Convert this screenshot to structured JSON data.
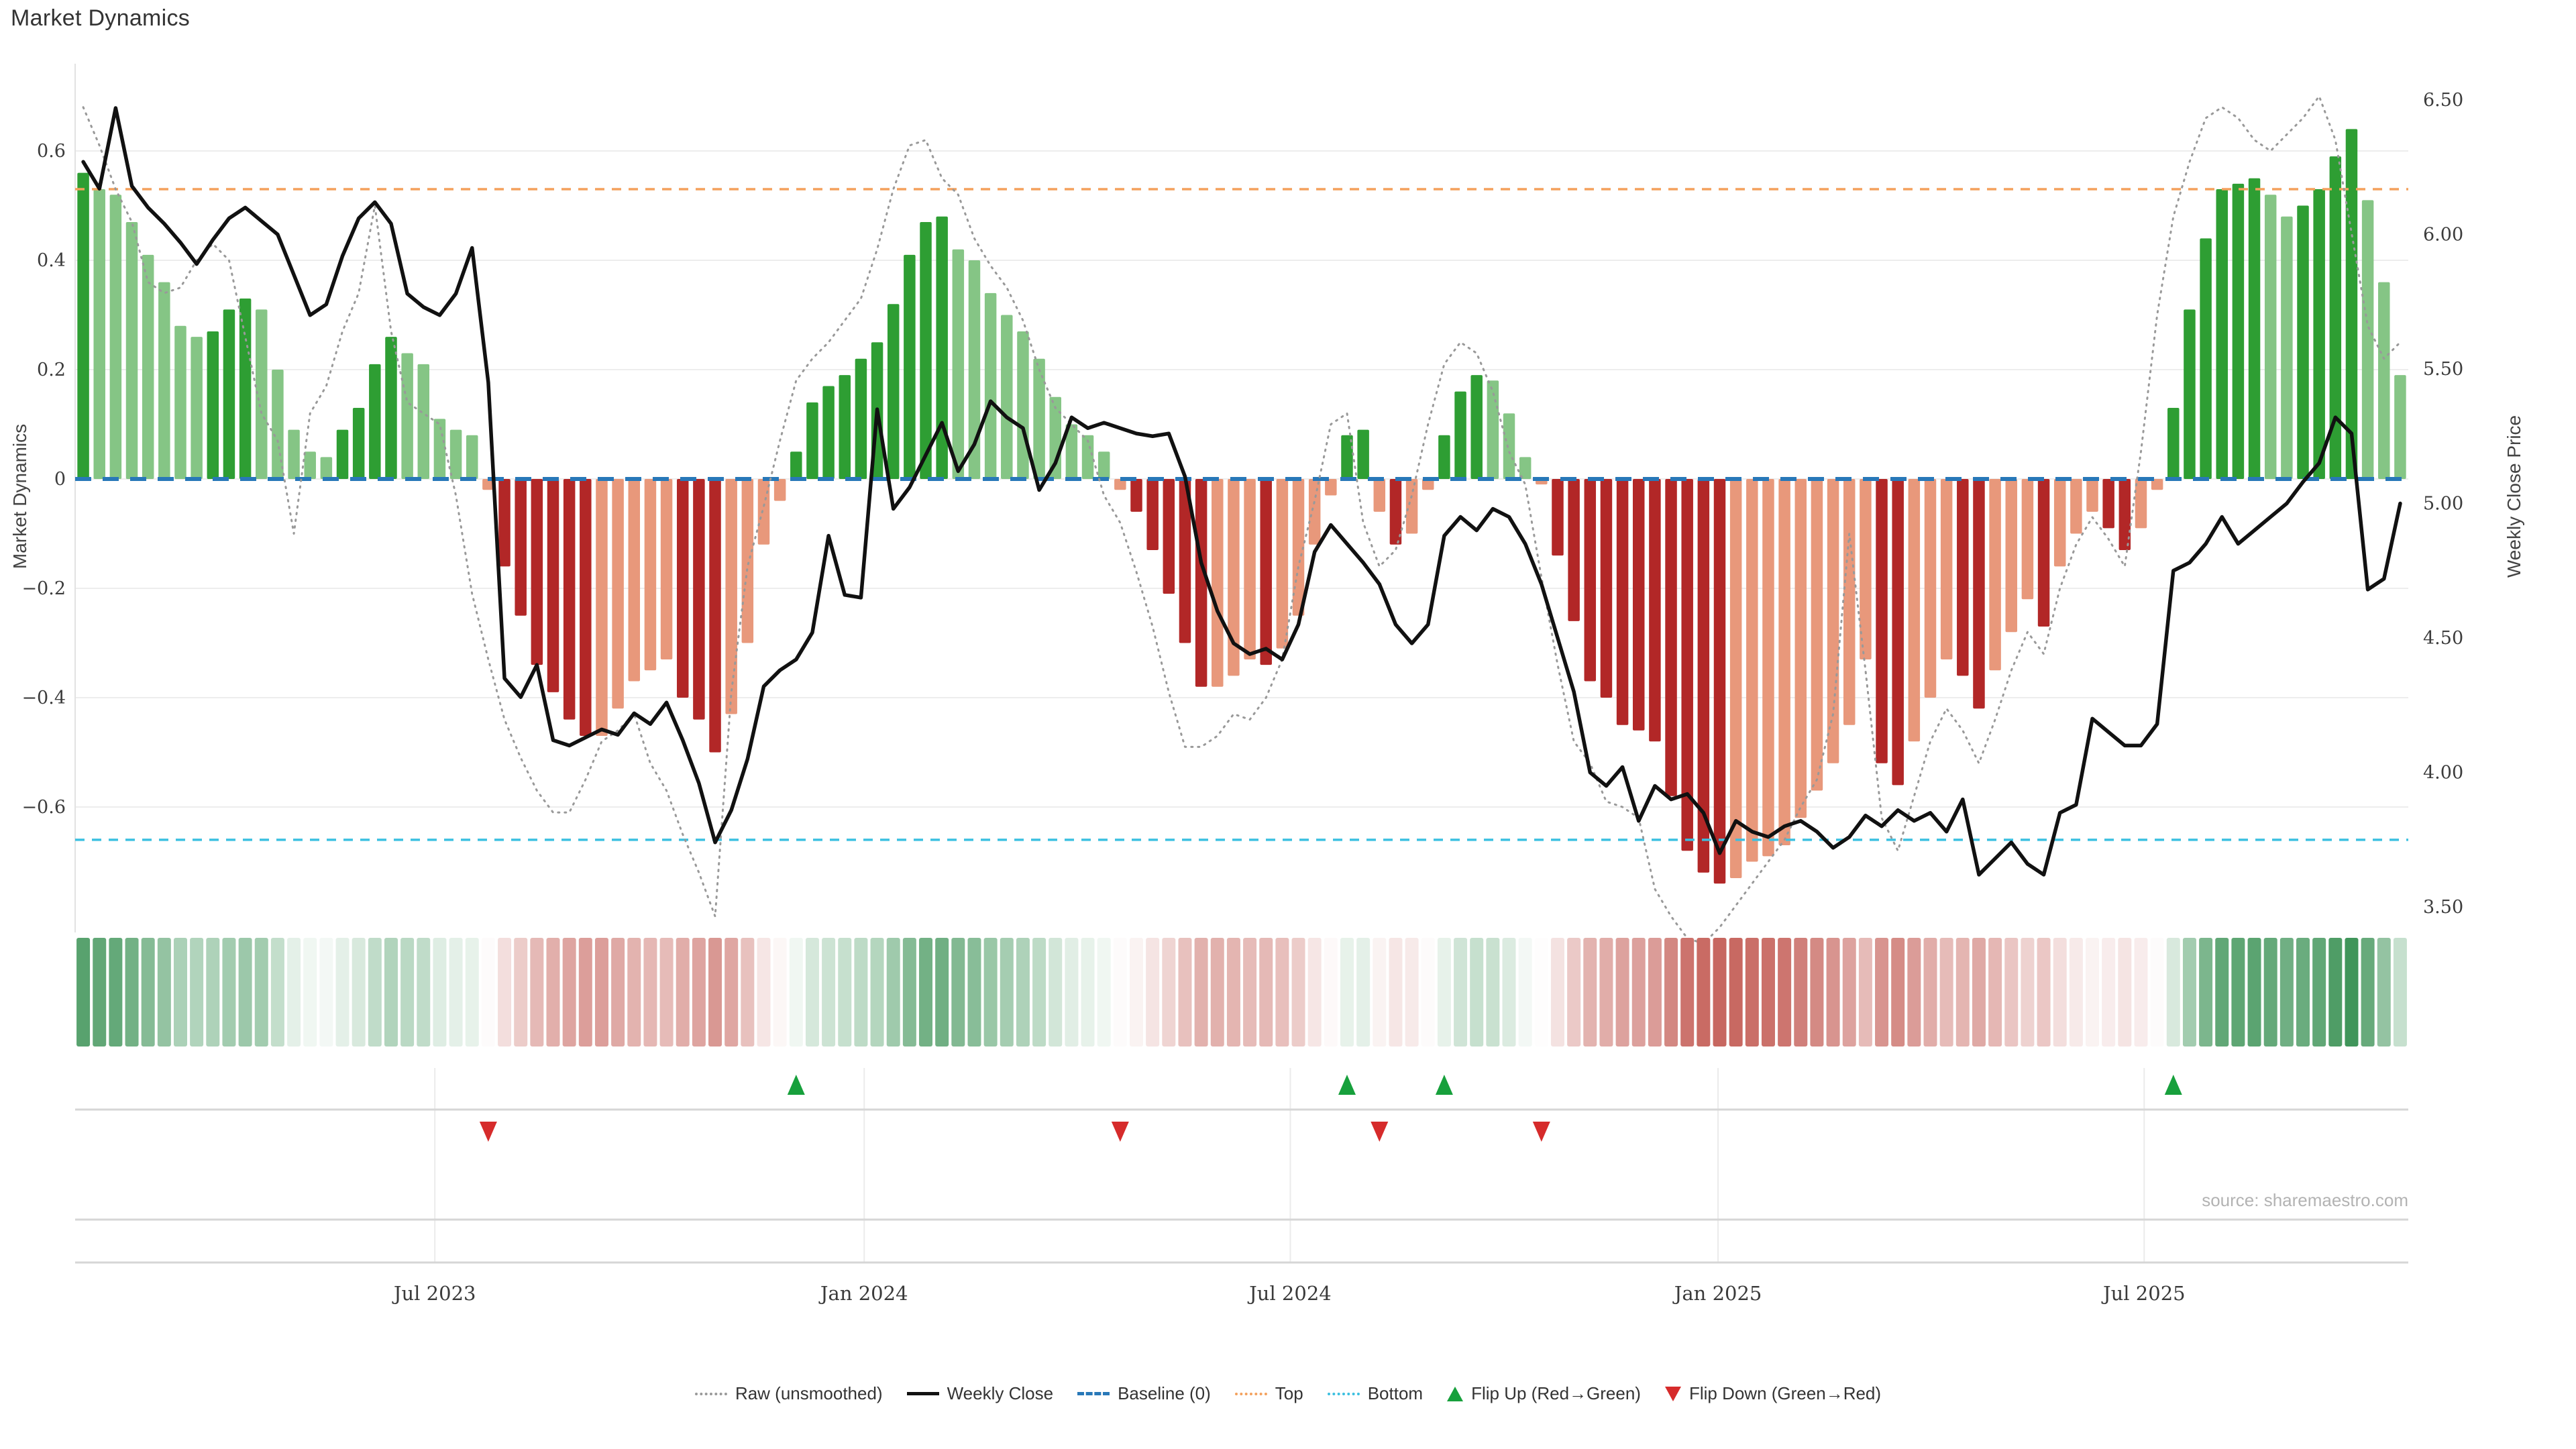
{
  "window": {
    "title": "Market Dynamics"
  },
  "source_note": "source: sharemaestro.com",
  "axes": {
    "left": {
      "title": "Market Dynamics",
      "tick_values": [
        0.6,
        0.4,
        0.2,
        0,
        -0.2,
        -0.4,
        -0.6
      ],
      "tick_labels": [
        "0.6",
        "0.4",
        "0.2",
        "0",
        "−0.2",
        "−0.4",
        "−0.6"
      ]
    },
    "right": {
      "title": "Weekly Close Price",
      "tick_values": [
        6.5,
        6.0,
        5.5,
        5.0,
        4.5,
        4.0,
        3.5
      ],
      "tick_labels": [
        "6.50",
        "6.00",
        "5.50",
        "5.00",
        "4.50",
        "4.00",
        "3.50"
      ]
    },
    "x": {
      "labels": [
        "Jul 2023",
        "Jan 2024",
        "Jul 2024",
        "Jan 2025",
        "Jul 2025"
      ],
      "week_positions": [
        22.2,
        48.7,
        75.0,
        101.4,
        127.7
      ]
    }
  },
  "legend": [
    {
      "label": "Raw (unsmoothed)",
      "swatch": "dotted-gray"
    },
    {
      "label": "Weekly Close",
      "swatch": "solid-black"
    },
    {
      "label": "Baseline (0)",
      "swatch": "dashed-blue"
    },
    {
      "label": "Top",
      "swatch": "dotted-orange"
    },
    {
      "label": "Bottom",
      "swatch": "dotted-cyan"
    },
    {
      "label": "Flip Up (Red→Green)",
      "swatch": "triangle-up"
    },
    {
      "label": "Flip Down (Green→Red)",
      "swatch": "triangle-down"
    }
  ],
  "markers": {
    "flip_up_weeks": [
      44,
      78,
      84,
      129
    ],
    "flip_down_weeks": [
      25,
      64,
      80,
      90
    ]
  },
  "chart_data": {
    "type": "bar",
    "subtype": "oscillator-with-price-overlay",
    "title": "Market Dynamics",
    "xlabel": "",
    "ylabel_left": "Market Dynamics",
    "ylabel_right": "Weekly Close Price",
    "ylim_left": [
      -0.78,
      0.78
    ],
    "ylim_right": [
      3.35,
      6.6
    ],
    "grid": "horizontal-light",
    "legend_position": "bottom-center",
    "baseline": 0,
    "top_threshold": 0.53,
    "bottom_threshold": -0.66,
    "weeks": 144,
    "x_start_label": "Feb 2023",
    "x_end_label": "Nov 2025",
    "series": [
      {
        "name": "Market Dynamics (smoothed bars)",
        "type": "bar",
        "values": [
          0.56,
          0.53,
          0.52,
          0.47,
          0.41,
          0.36,
          0.28,
          0.26,
          0.27,
          0.31,
          0.33,
          0.31,
          0.2,
          0.09,
          0.05,
          0.04,
          0.09,
          0.13,
          0.21,
          0.26,
          0.23,
          0.21,
          0.11,
          0.09,
          0.08,
          -0.02,
          -0.16,
          -0.25,
          -0.34,
          -0.39,
          -0.44,
          -0.47,
          -0.47,
          -0.42,
          -0.37,
          -0.35,
          -0.33,
          -0.4,
          -0.44,
          -0.5,
          -0.43,
          -0.3,
          -0.12,
          -0.04,
          0.05,
          0.14,
          0.17,
          0.19,
          0.22,
          0.25,
          0.32,
          0.41,
          0.47,
          0.48,
          0.42,
          0.4,
          0.34,
          0.3,
          0.27,
          0.22,
          0.15,
          0.1,
          0.08,
          0.05,
          -0.02,
          -0.06,
          -0.13,
          -0.21,
          -0.3,
          -0.38,
          -0.38,
          -0.36,
          -0.33,
          -0.34,
          -0.31,
          -0.25,
          -0.12,
          -0.03,
          0.08,
          0.09,
          -0.06,
          -0.12,
          -0.1,
          -0.02,
          0.08,
          0.16,
          0.19,
          0.18,
          0.12,
          0.04,
          -0.01,
          -0.14,
          -0.26,
          -0.37,
          -0.4,
          -0.45,
          -0.46,
          -0.48,
          -0.58,
          -0.68,
          -0.72,
          -0.74,
          -0.73,
          -0.7,
          -0.69,
          -0.67,
          -0.62,
          -0.57,
          -0.52,
          -0.45,
          -0.33,
          -0.52,
          -0.56,
          -0.48,
          -0.4,
          -0.33,
          -0.36,
          -0.42,
          -0.35,
          -0.28,
          -0.22,
          -0.27,
          -0.16,
          -0.1,
          -0.06,
          -0.09,
          -0.13,
          -0.09,
          -0.02,
          0.13,
          0.31,
          0.44,
          0.53,
          0.54,
          0.55,
          0.52,
          0.48,
          0.5,
          0.53,
          0.59,
          0.64,
          0.51,
          0.36,
          0.19
        ]
      },
      {
        "name": "Raw (unsmoothed)",
        "type": "line-dotted",
        "values": [
          0.68,
          0.61,
          0.53,
          0.47,
          0.36,
          0.34,
          0.35,
          0.4,
          0.43,
          0.4,
          0.26,
          0.12,
          0.07,
          -0.1,
          0.12,
          0.17,
          0.27,
          0.34,
          0.5,
          0.27,
          0.14,
          0.12,
          0.1,
          -0.03,
          -0.21,
          -0.33,
          -0.44,
          -0.51,
          -0.57,
          -0.61,
          -0.61,
          -0.55,
          -0.48,
          -0.46,
          -0.43,
          -0.52,
          -0.57,
          -0.65,
          -0.72,
          -0.8,
          -0.39,
          -0.16,
          -0.05,
          0.07,
          0.18,
          0.22,
          0.25,
          0.29,
          0.33,
          0.42,
          0.53,
          0.61,
          0.62,
          0.55,
          0.52,
          0.44,
          0.39,
          0.35,
          0.29,
          0.2,
          0.13,
          0.1,
          0.07,
          -0.03,
          -0.08,
          -0.17,
          -0.27,
          -0.39,
          -0.49,
          -0.49,
          -0.47,
          -0.43,
          -0.44,
          -0.4,
          -0.33,
          -0.16,
          -0.04,
          0.1,
          0.12,
          -0.08,
          -0.16,
          -0.13,
          -0.03,
          0.1,
          0.21,
          0.25,
          0.23,
          0.16,
          0.05,
          -0.01,
          -0.18,
          -0.34,
          -0.48,
          -0.52,
          -0.59,
          -0.6,
          -0.62,
          -0.75,
          -0.8,
          -0.84,
          -0.85,
          -0.82,
          -0.78,
          -0.74,
          -0.7,
          -0.66,
          -0.6,
          -0.55,
          -0.43,
          -0.1,
          -0.35,
          -0.62,
          -0.68,
          -0.58,
          -0.48,
          -0.42,
          -0.46,
          -0.52,
          -0.44,
          -0.35,
          -0.28,
          -0.32,
          -0.2,
          -0.12,
          -0.07,
          -0.11,
          -0.16,
          0.05,
          0.3,
          0.48,
          0.58,
          0.66,
          0.68,
          0.66,
          0.62,
          0.6,
          0.63,
          0.66,
          0.7,
          0.62,
          0.45,
          0.28,
          0.22,
          0.25
        ]
      },
      {
        "name": "Weekly Close",
        "type": "line-solid",
        "axis": "right",
        "values": [
          6.27,
          6.17,
          6.47,
          6.18,
          6.1,
          6.04,
          5.97,
          5.89,
          5.98,
          6.06,
          6.1,
          6.05,
          6.0,
          5.85,
          5.7,
          5.74,
          5.92,
          6.06,
          6.12,
          6.04,
          5.78,
          5.73,
          5.7,
          5.78,
          5.95,
          5.45,
          4.35,
          4.28,
          4.4,
          4.12,
          4.1,
          4.13,
          4.16,
          4.14,
          4.22,
          4.18,
          4.26,
          4.12,
          3.96,
          3.74,
          3.86,
          4.05,
          4.32,
          4.38,
          4.42,
          4.52,
          4.88,
          4.66,
          4.65,
          5.35,
          4.98,
          5.06,
          5.18,
          5.3,
          5.12,
          5.22,
          5.38,
          5.32,
          5.28,
          5.05,
          5.15,
          5.32,
          5.28,
          5.3,
          5.28,
          5.26,
          5.25,
          5.26,
          5.1,
          4.78,
          4.6,
          4.48,
          4.44,
          4.46,
          4.42,
          4.55,
          4.82,
          4.92,
          4.85,
          4.78,
          4.7,
          4.55,
          4.48,
          4.55,
          4.88,
          4.95,
          4.9,
          4.98,
          4.95,
          4.85,
          4.7,
          4.5,
          4.3,
          4.0,
          3.95,
          4.02,
          3.82,
          3.95,
          3.9,
          3.92,
          3.85,
          3.7,
          3.82,
          3.78,
          3.76,
          3.8,
          3.82,
          3.78,
          3.72,
          3.76,
          3.84,
          3.8,
          3.86,
          3.82,
          3.85,
          3.78,
          3.9,
          3.62,
          3.68,
          3.74,
          3.66,
          3.62,
          3.85,
          3.88,
          4.2,
          4.15,
          4.1,
          4.1,
          4.18,
          4.75,
          4.78,
          4.85,
          4.95,
          4.85,
          4.9,
          4.95,
          5.0,
          5.08,
          5.15,
          5.32,
          5.26,
          4.68,
          4.72,
          5.0
        ]
      }
    ],
    "colors": {
      "bar_up_strong": "#2e9e33",
      "bar_up_fading": "#85c585",
      "bar_down_strong": "#b22727",
      "bar_down_fading": "#e8987b",
      "baseline_blue": "#2878b8",
      "top_orange": "#f4a15d",
      "bottom_cyan": "#3cc0e0",
      "raw_gray": "#999999",
      "price_black": "#111111",
      "flip_up_green": "#17a03c",
      "flip_down_red": "#d62b2b",
      "heat_green": "#2e8b4a",
      "heat_red": "#bf5048",
      "gridline": "#ededed",
      "panel_line": "#d6d6d6",
      "tick_text": "#3c3c3c"
    }
  }
}
